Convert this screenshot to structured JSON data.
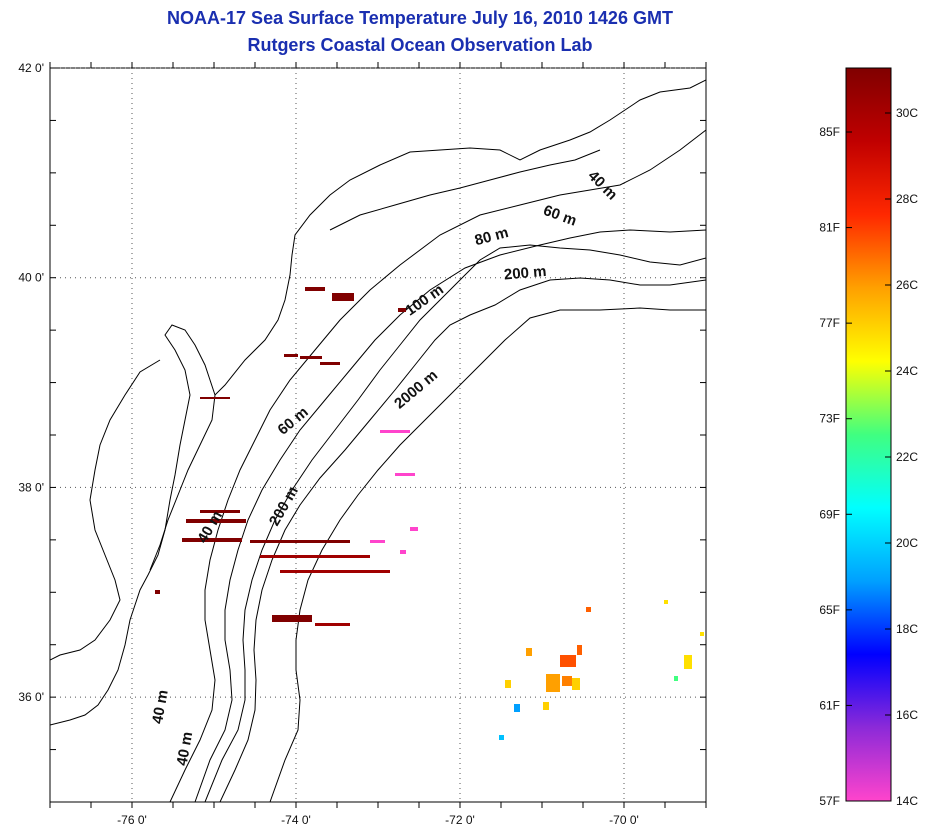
{
  "title": "NOAA-17 Sea Surface Temperature July 16, 2010 1426 GMT",
  "subtitle": "Rutgers Coastal Ocean Observation Lab",
  "map": {
    "lon_range": [
      -77,
      -69
    ],
    "lat_range": [
      35,
      42
    ],
    "lon_ticks": [
      {
        "value": -76,
        "label": "-76 0'"
      },
      {
        "value": -74,
        "label": "-74 0'"
      },
      {
        "value": -72,
        "label": "-72 0'"
      },
      {
        "value": -70,
        "label": "-70 0'"
      }
    ],
    "lat_ticks": [
      {
        "value": 36,
        "label": "36 0'"
      },
      {
        "value": 38,
        "label": "38 0'"
      },
      {
        "value": 40,
        "label": "40 0'"
      },
      {
        "value": 42,
        "label": "42 0'"
      }
    ],
    "depth_labels": [
      {
        "text": "40 m",
        "lon": -70.3,
        "lat": 40.85,
        "rot": 45
      },
      {
        "text": "60 m",
        "lon": -70.8,
        "lat": 40.55,
        "rot": 20
      },
      {
        "text": "80 m",
        "lon": -71.6,
        "lat": 40.35,
        "rot": -15
      },
      {
        "text": "200 m",
        "lon": -71.2,
        "lat": 40.0,
        "rot": -5
      },
      {
        "text": "100 m",
        "lon": -72.4,
        "lat": 39.75,
        "rot": -35
      },
      {
        "text": "2000 m",
        "lon": -72.5,
        "lat": 38.9,
        "rot": -40
      },
      {
        "text": "60 m",
        "lon": -74.0,
        "lat": 38.6,
        "rot": -40
      },
      {
        "text": "200 m",
        "lon": -74.1,
        "lat": 37.8,
        "rot": -60
      },
      {
        "text": "40 m",
        "lon": -75.0,
        "lat": 37.6,
        "rot": -60
      },
      {
        "text": "40 m",
        "lon": -75.3,
        "lat": 35.5,
        "rot": -80
      },
      {
        "text": "40 m",
        "lon": -75.6,
        "lat": 35.9,
        "rot": -80
      }
    ]
  },
  "colorbar": {
    "left_labels": [
      "85F",
      "81F",
      "77F",
      "73F",
      "69F",
      "65F",
      "61F",
      "57F"
    ],
    "right_labels": [
      "30C",
      "28C",
      "26C",
      "24C",
      "22C",
      "20C",
      "18C",
      "16C",
      "14C"
    ],
    "colors": [
      "#ff44cc",
      "#8c2ad8",
      "#0000ff",
      "#00a0ff",
      "#00ffff",
      "#40ff80",
      "#ffff00",
      "#ffa000",
      "#ff2800",
      "#c00000",
      "#800000"
    ]
  }
}
